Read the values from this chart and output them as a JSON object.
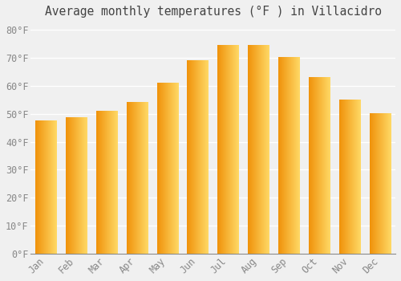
{
  "title": "Average monthly temperatures (°F ) in Villacidro",
  "months": [
    "Jan",
    "Feb",
    "Mar",
    "Apr",
    "May",
    "Jun",
    "Jul",
    "Aug",
    "Sep",
    "Oct",
    "Nov",
    "Dec"
  ],
  "values": [
    47.5,
    48.5,
    51,
    54,
    61,
    69,
    74.5,
    74.5,
    70,
    63,
    55,
    50
  ],
  "bar_color_left": "#F0920A",
  "bar_color_right": "#FFD966",
  "ylim": [
    0,
    82
  ],
  "yticks": [
    0,
    10,
    20,
    30,
    40,
    50,
    60,
    70,
    80
  ],
  "ytick_labels": [
    "0°F",
    "10°F",
    "20°F",
    "30°F",
    "40°F",
    "50°F",
    "60°F",
    "70°F",
    "80°F"
  ],
  "background_color": "#F0F0F0",
  "grid_color": "#FFFFFF",
  "title_fontsize": 10.5,
  "tick_fontsize": 8.5,
  "font_family": "monospace"
}
